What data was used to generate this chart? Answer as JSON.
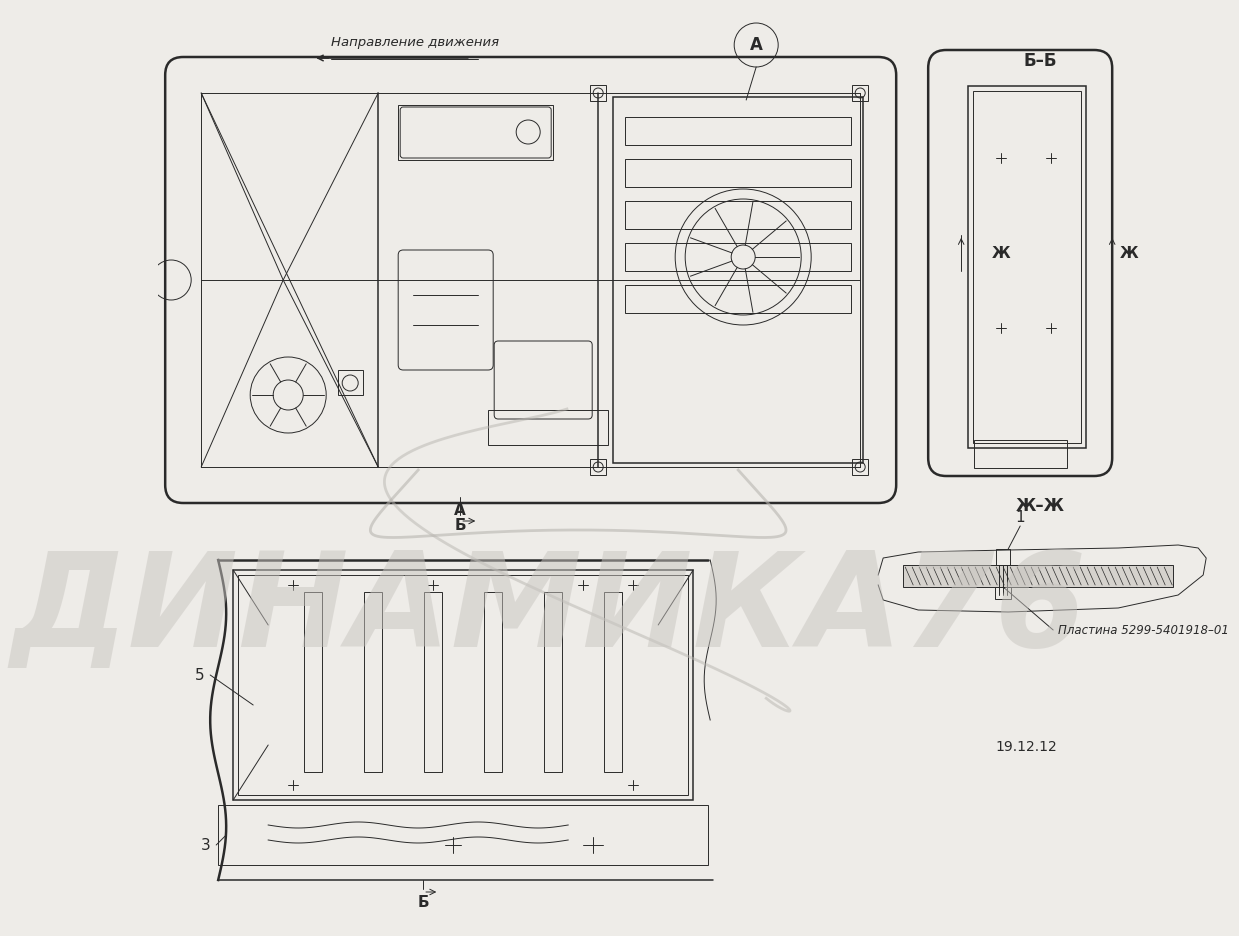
{
  "bg_color": "#eeece8",
  "line_color": "#2a2a2a",
  "watermark_color": "#c8c5c0",
  "watermark_text": "ДИНАМИКА76",
  "title_direction": "Направление движения",
  "label_A": "А",
  "label_BB": "Б–Б",
  "label_ZhZh": "Ж–Ж",
  "label_Zh": "Ж",
  "label_A2": "А",
  "label_B": "Б",
  "label_B2": "Б",
  "label_1": "1",
  "label_3": "3",
  "label_5": "5",
  "annotation_part": "Пластина 5299-5401918–01",
  "date_text": "19.12.12",
  "fig_width": 10.59,
  "fig_height": 9.16
}
